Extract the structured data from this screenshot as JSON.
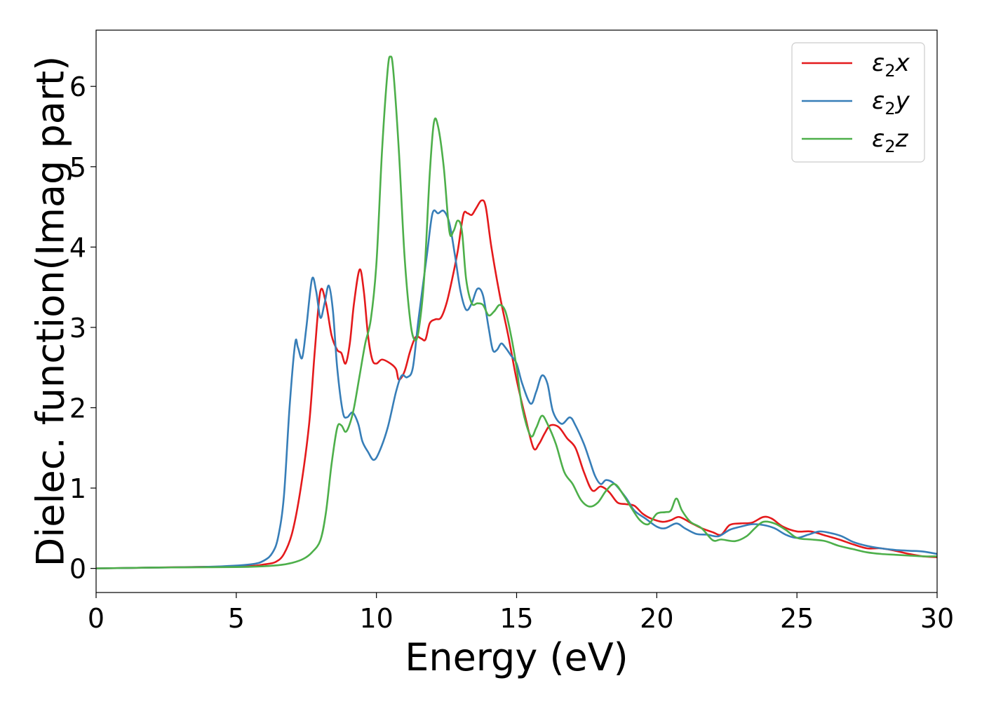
{
  "chart_data": {
    "type": "line",
    "title": "",
    "xlabel": "Energy (eV)",
    "ylabel": "Dielec. function(Imag part)",
    "xlim": [
      0,
      30
    ],
    "ylim": [
      -0.3,
      6.7
    ],
    "xticks": [
      0,
      5,
      10,
      15,
      20,
      25,
      30
    ],
    "yticks": [
      0,
      1,
      2,
      3,
      4,
      5,
      6
    ],
    "grid": false,
    "legend_position": "top-right",
    "series": [
      {
        "name": "ε₂x",
        "label_base": "ε",
        "label_sub": "2",
        "label_suffix": "x",
        "color": "#e41a1c",
        "points": [
          [
            0,
            0.0
          ],
          [
            2,
            0.01
          ],
          [
            4,
            0.02
          ],
          [
            5.5,
            0.03
          ],
          [
            6.0,
            0.05
          ],
          [
            6.4,
            0.08
          ],
          [
            6.7,
            0.18
          ],
          [
            7.0,
            0.45
          ],
          [
            7.3,
            1.0
          ],
          [
            7.6,
            1.8
          ],
          [
            7.8,
            2.7
          ],
          [
            8.0,
            3.45
          ],
          [
            8.2,
            3.3
          ],
          [
            8.4,
            2.9
          ],
          [
            8.6,
            2.72
          ],
          [
            8.75,
            2.68
          ],
          [
            8.9,
            2.55
          ],
          [
            9.05,
            2.8
          ],
          [
            9.2,
            3.3
          ],
          [
            9.4,
            3.72
          ],
          [
            9.55,
            3.45
          ],
          [
            9.7,
            2.9
          ],
          [
            9.85,
            2.6
          ],
          [
            10.0,
            2.55
          ],
          [
            10.2,
            2.6
          ],
          [
            10.5,
            2.55
          ],
          [
            10.7,
            2.48
          ],
          [
            10.8,
            2.35
          ],
          [
            11.0,
            2.45
          ],
          [
            11.2,
            2.7
          ],
          [
            11.4,
            2.88
          ],
          [
            11.6,
            2.86
          ],
          [
            11.75,
            2.85
          ],
          [
            11.9,
            3.05
          ],
          [
            12.1,
            3.1
          ],
          [
            12.3,
            3.12
          ],
          [
            12.5,
            3.3
          ],
          [
            12.7,
            3.6
          ],
          [
            12.9,
            3.95
          ],
          [
            13.1,
            4.4
          ],
          [
            13.25,
            4.42
          ],
          [
            13.4,
            4.4
          ],
          [
            13.55,
            4.48
          ],
          [
            13.75,
            4.58
          ],
          [
            13.9,
            4.5
          ],
          [
            14.1,
            4.0
          ],
          [
            14.4,
            3.4
          ],
          [
            14.7,
            2.9
          ],
          [
            15.0,
            2.35
          ],
          [
            15.3,
            1.9
          ],
          [
            15.6,
            1.5
          ],
          [
            15.8,
            1.55
          ],
          [
            16.0,
            1.68
          ],
          [
            16.2,
            1.78
          ],
          [
            16.5,
            1.76
          ],
          [
            16.8,
            1.62
          ],
          [
            17.1,
            1.5
          ],
          [
            17.4,
            1.2
          ],
          [
            17.7,
            0.97
          ],
          [
            18.0,
            1.02
          ],
          [
            18.3,
            0.95
          ],
          [
            18.6,
            0.82
          ],
          [
            18.9,
            0.8
          ],
          [
            19.2,
            0.78
          ],
          [
            19.5,
            0.68
          ],
          [
            19.8,
            0.62
          ],
          [
            20.2,
            0.58
          ],
          [
            20.5,
            0.6
          ],
          [
            20.8,
            0.64
          ],
          [
            21.2,
            0.57
          ],
          [
            21.6,
            0.5
          ],
          [
            22.0,
            0.45
          ],
          [
            22.3,
            0.42
          ],
          [
            22.6,
            0.54
          ],
          [
            23.0,
            0.56
          ],
          [
            23.4,
            0.57
          ],
          [
            23.8,
            0.64
          ],
          [
            24.1,
            0.62
          ],
          [
            24.5,
            0.52
          ],
          [
            25.0,
            0.46
          ],
          [
            25.5,
            0.46
          ],
          [
            26.0,
            0.41
          ],
          [
            26.5,
            0.36
          ],
          [
            27.0,
            0.3
          ],
          [
            27.5,
            0.25
          ],
          [
            28.0,
            0.25
          ],
          [
            28.5,
            0.22
          ],
          [
            29.0,
            0.18
          ],
          [
            29.5,
            0.15
          ],
          [
            30.0,
            0.14
          ]
        ]
      },
      {
        "name": "ε₂y",
        "label_base": "ε",
        "label_sub": "2",
        "label_suffix": "y",
        "color": "#377eb8",
        "points": [
          [
            0,
            0.0
          ],
          [
            2,
            0.01
          ],
          [
            4,
            0.02
          ],
          [
            5.5,
            0.05
          ],
          [
            6.0,
            0.1
          ],
          [
            6.3,
            0.2
          ],
          [
            6.5,
            0.4
          ],
          [
            6.7,
            0.9
          ],
          [
            6.9,
            2.0
          ],
          [
            7.1,
            2.8
          ],
          [
            7.2,
            2.75
          ],
          [
            7.35,
            2.62
          ],
          [
            7.5,
            3.0
          ],
          [
            7.7,
            3.6
          ],
          [
            7.85,
            3.45
          ],
          [
            8.0,
            3.12
          ],
          [
            8.15,
            3.3
          ],
          [
            8.3,
            3.52
          ],
          [
            8.45,
            3.2
          ],
          [
            8.6,
            2.5
          ],
          [
            8.8,
            1.95
          ],
          [
            8.95,
            1.88
          ],
          [
            9.15,
            1.94
          ],
          [
            9.35,
            1.8
          ],
          [
            9.5,
            1.58
          ],
          [
            9.7,
            1.45
          ],
          [
            9.9,
            1.35
          ],
          [
            10.1,
            1.45
          ],
          [
            10.4,
            1.75
          ],
          [
            10.7,
            2.2
          ],
          [
            10.9,
            2.4
          ],
          [
            11.1,
            2.38
          ],
          [
            11.3,
            2.5
          ],
          [
            11.5,
            3.1
          ],
          [
            11.8,
            3.9
          ],
          [
            12.0,
            4.42
          ],
          [
            12.2,
            4.42
          ],
          [
            12.4,
            4.45
          ],
          [
            12.6,
            4.3
          ],
          [
            12.8,
            3.9
          ],
          [
            13.0,
            3.45
          ],
          [
            13.2,
            3.22
          ],
          [
            13.4,
            3.3
          ],
          [
            13.6,
            3.48
          ],
          [
            13.8,
            3.4
          ],
          [
            14.0,
            3.0
          ],
          [
            14.15,
            2.72
          ],
          [
            14.3,
            2.72
          ],
          [
            14.45,
            2.8
          ],
          [
            14.6,
            2.75
          ],
          [
            14.8,
            2.65
          ],
          [
            15.0,
            2.55
          ],
          [
            15.2,
            2.3
          ],
          [
            15.5,
            2.05
          ],
          [
            15.7,
            2.2
          ],
          [
            15.9,
            2.4
          ],
          [
            16.1,
            2.3
          ],
          [
            16.3,
            1.95
          ],
          [
            16.6,
            1.8
          ],
          [
            16.9,
            1.88
          ],
          [
            17.1,
            1.78
          ],
          [
            17.4,
            1.55
          ],
          [
            17.6,
            1.35
          ],
          [
            17.8,
            1.15
          ],
          [
            18.0,
            1.05
          ],
          [
            18.2,
            1.1
          ],
          [
            18.5,
            1.05
          ],
          [
            18.9,
            0.88
          ],
          [
            19.2,
            0.72
          ],
          [
            19.6,
            0.62
          ],
          [
            20.0,
            0.52
          ],
          [
            20.3,
            0.5
          ],
          [
            20.7,
            0.56
          ],
          [
            21.0,
            0.5
          ],
          [
            21.4,
            0.43
          ],
          [
            21.8,
            0.42
          ],
          [
            22.2,
            0.4
          ],
          [
            22.6,
            0.48
          ],
          [
            23.0,
            0.52
          ],
          [
            23.4,
            0.55
          ],
          [
            23.8,
            0.54
          ],
          [
            24.2,
            0.5
          ],
          [
            24.6,
            0.42
          ],
          [
            25.0,
            0.38
          ],
          [
            25.4,
            0.42
          ],
          [
            25.8,
            0.46
          ],
          [
            26.2,
            0.44
          ],
          [
            26.6,
            0.4
          ],
          [
            27.0,
            0.33
          ],
          [
            27.5,
            0.28
          ],
          [
            28.0,
            0.25
          ],
          [
            28.5,
            0.23
          ],
          [
            29.0,
            0.22
          ],
          [
            29.5,
            0.21
          ],
          [
            30.0,
            0.18
          ]
        ]
      },
      {
        "name": "ε₂z",
        "label_base": "ε",
        "label_sub": "2",
        "label_suffix": "z",
        "color": "#4daf4a",
        "points": [
          [
            0,
            0.0
          ],
          [
            2,
            0.01
          ],
          [
            4,
            0.015
          ],
          [
            5.5,
            0.02
          ],
          [
            6.5,
            0.04
          ],
          [
            7.0,
            0.07
          ],
          [
            7.4,
            0.12
          ],
          [
            7.7,
            0.2
          ],
          [
            8.0,
            0.35
          ],
          [
            8.2,
            0.7
          ],
          [
            8.4,
            1.3
          ],
          [
            8.6,
            1.75
          ],
          [
            8.75,
            1.78
          ],
          [
            8.9,
            1.7
          ],
          [
            9.05,
            1.8
          ],
          [
            9.2,
            2.0
          ],
          [
            9.4,
            2.4
          ],
          [
            9.6,
            2.8
          ],
          [
            9.8,
            3.1
          ],
          [
            10.0,
            3.8
          ],
          [
            10.2,
            5.2
          ],
          [
            10.4,
            6.2
          ],
          [
            10.5,
            6.37
          ],
          [
            10.6,
            6.2
          ],
          [
            10.8,
            5.2
          ],
          [
            11.0,
            3.9
          ],
          [
            11.2,
            3.1
          ],
          [
            11.35,
            2.85
          ],
          [
            11.5,
            2.95
          ],
          [
            11.7,
            3.6
          ],
          [
            11.9,
            4.9
          ],
          [
            12.05,
            5.55
          ],
          [
            12.2,
            5.5
          ],
          [
            12.4,
            5.0
          ],
          [
            12.6,
            4.2
          ],
          [
            12.75,
            4.2
          ],
          [
            12.9,
            4.33
          ],
          [
            13.05,
            4.2
          ],
          [
            13.2,
            3.6
          ],
          [
            13.4,
            3.3
          ],
          [
            13.6,
            3.3
          ],
          [
            13.8,
            3.28
          ],
          [
            14.0,
            3.15
          ],
          [
            14.2,
            3.2
          ],
          [
            14.4,
            3.28
          ],
          [
            14.6,
            3.2
          ],
          [
            14.8,
            2.9
          ],
          [
            15.0,
            2.5
          ],
          [
            15.2,
            2.0
          ],
          [
            15.5,
            1.65
          ],
          [
            15.7,
            1.75
          ],
          [
            15.9,
            1.9
          ],
          [
            16.1,
            1.8
          ],
          [
            16.4,
            1.55
          ],
          [
            16.7,
            1.2
          ],
          [
            17.0,
            1.05
          ],
          [
            17.3,
            0.85
          ],
          [
            17.6,
            0.77
          ],
          [
            17.9,
            0.82
          ],
          [
            18.2,
            0.97
          ],
          [
            18.5,
            1.05
          ],
          [
            18.8,
            0.92
          ],
          [
            19.1,
            0.75
          ],
          [
            19.4,
            0.6
          ],
          [
            19.7,
            0.55
          ],
          [
            20.0,
            0.68
          ],
          [
            20.3,
            0.7
          ],
          [
            20.5,
            0.72
          ],
          [
            20.7,
            0.87
          ],
          [
            20.9,
            0.72
          ],
          [
            21.2,
            0.58
          ],
          [
            21.6,
            0.5
          ],
          [
            22.0,
            0.35
          ],
          [
            22.3,
            0.36
          ],
          [
            22.8,
            0.34
          ],
          [
            23.2,
            0.4
          ],
          [
            23.5,
            0.5
          ],
          [
            23.8,
            0.58
          ],
          [
            24.2,
            0.56
          ],
          [
            24.6,
            0.48
          ],
          [
            25.0,
            0.38
          ],
          [
            25.5,
            0.36
          ],
          [
            26.0,
            0.34
          ],
          [
            26.5,
            0.28
          ],
          [
            27.0,
            0.24
          ],
          [
            27.5,
            0.2
          ],
          [
            28.0,
            0.18
          ],
          [
            28.5,
            0.17
          ],
          [
            29.0,
            0.16
          ],
          [
            29.5,
            0.15
          ],
          [
            30.0,
            0.15
          ]
        ]
      }
    ]
  }
}
